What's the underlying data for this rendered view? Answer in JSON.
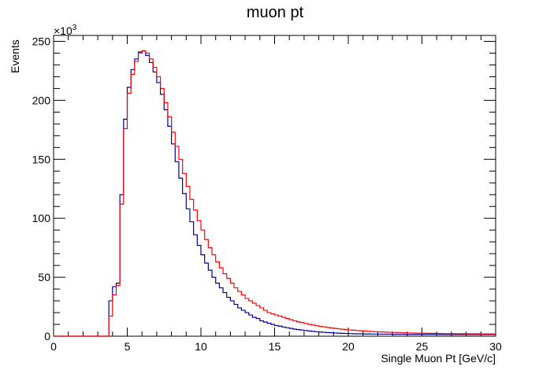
{
  "chart_data": {
    "type": "line",
    "title": "muon pt",
    "xlabel": "Single Muon Pt [GeV/c]",
    "ylabel": "Events",
    "y_multiplier": "×10",
    "y_multiplier_exp": "3",
    "xlim": [
      0,
      30
    ],
    "ylim": [
      0,
      255
    ],
    "x_ticks": [
      0,
      5,
      10,
      15,
      20,
      25,
      30
    ],
    "y_ticks": [
      0,
      50,
      100,
      150,
      200,
      250
    ],
    "grid": false,
    "bin_width": 0.25,
    "x_start": 0,
    "colors": {
      "blue": "#000099",
      "red": "#ff0000"
    },
    "series": [
      {
        "color": "#000099",
        "values": [
          0,
          0,
          0,
          0,
          0,
          0,
          0,
          0,
          0,
          0,
          0,
          0,
          0,
          0,
          0,
          30,
          42,
          45,
          120,
          184,
          211,
          226,
          235,
          241,
          242,
          238,
          232,
          224,
          215,
          205,
          192,
          178,
          163,
          148,
          134,
          121,
          108,
          97,
          86,
          77,
          69,
          62,
          56,
          50,
          45,
          41,
          37,
          33,
          30,
          27,
          24,
          22,
          20,
          18,
          16,
          15,
          13,
          12,
          11,
          10,
          9,
          8.5,
          7.8,
          7.2,
          6.6,
          6,
          5.6,
          5.2,
          4.8,
          4.4,
          4.1,
          3.8,
          3.5,
          3.3,
          3.1,
          2.9,
          2.7,
          2.5,
          2.4,
          2.3,
          2.2,
          2.1,
          2,
          2,
          1.9,
          1.9,
          1.8,
          1.8,
          1.8,
          1.7,
          1.7,
          1.7,
          1.6,
          1.6,
          1.6,
          1.6,
          1.5,
          1.5,
          1.5,
          1.5,
          1.5,
          1.5,
          1.5,
          1.5,
          1.5,
          1.4,
          1.4,
          1.4,
          1.4,
          1.4,
          1.4,
          1.4,
          1.4,
          1.4,
          1.4,
          1.4,
          1.4,
          1.4,
          1.4,
          1.4
        ]
      },
      {
        "color": "#ff0000",
        "values": [
          0,
          0,
          0,
          0,
          0,
          0,
          0,
          0,
          0,
          0,
          0,
          0,
          0,
          0,
          0,
          17,
          35,
          43,
          112,
          176,
          206,
          222,
          233,
          240,
          242,
          240,
          235,
          228,
          220,
          210,
          198,
          186,
          173,
          161,
          150,
          138,
          127,
          116,
          107,
          98,
          90,
          82,
          75,
          69,
          63,
          58,
          53,
          49,
          45,
          41,
          38,
          35,
          32,
          30,
          28,
          26,
          24,
          22,
          20,
          19,
          18,
          17,
          16,
          15,
          14,
          13,
          12.2,
          11.5,
          10.8,
          10.1,
          9.5,
          8.9,
          8.4,
          7.9,
          7.4,
          7,
          6.6,
          6.2,
          5.9,
          5.6,
          5.3,
          5.1,
          4.8,
          4.6,
          4.4,
          4.2,
          4,
          3.8,
          3.7,
          3.5,
          3.4,
          3.3,
          3.2,
          3.1,
          3,
          2.9,
          2.8,
          2.7,
          2.6,
          2.6,
          2.5,
          2.5,
          2.4,
          2.4,
          2.3,
          2.3,
          2.2,
          2.2,
          2.2,
          2.1,
          2.1,
          2.1,
          2,
          2,
          2,
          2,
          1.9,
          1.9,
          1.9,
          1.9
        ]
      }
    ]
  }
}
